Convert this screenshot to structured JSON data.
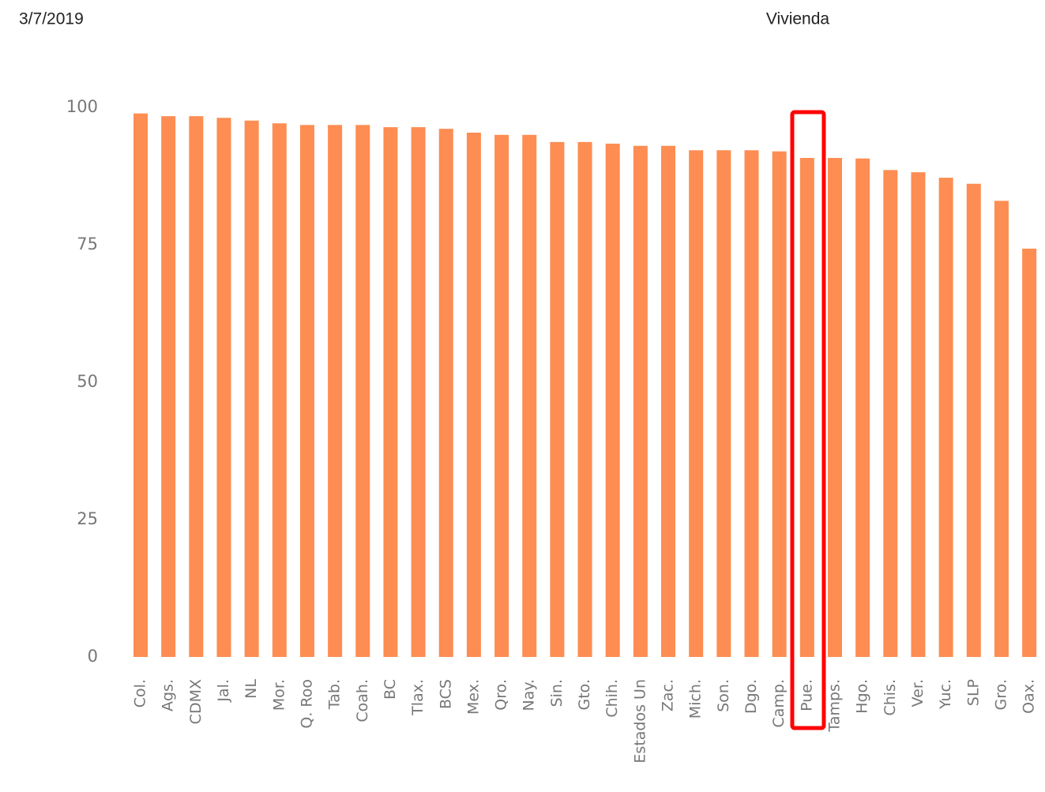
{
  "date": "3/7/2019",
  "chart_data": {
    "type": "bar",
    "title": "Vivienda",
    "categories": [
      "Col.",
      "Ags.",
      "CDMX",
      "Jal.",
      "NL",
      "Mor.",
      "Q. Roo",
      "Tab.",
      "Coah.",
      "BC",
      "Tlax.",
      "BCS",
      "Mex.",
      "Qro.",
      "Nay.",
      "Sin.",
      "Gto.",
      "Chih.",
      "Estados Un",
      "Zac.",
      "Mich.",
      "Son.",
      "Dgo.",
      "Camp.",
      "Pue.",
      "Tamps.",
      "Hgo.",
      "Chis.",
      "Ver.",
      "Yuc.",
      "SLP",
      "Gro.",
      "Oax."
    ],
    "values": [
      98.9,
      98.4,
      98.4,
      98.1,
      97.6,
      97.1,
      96.8,
      96.8,
      96.8,
      96.4,
      96.4,
      96.1,
      95.4,
      95.0,
      95.0,
      93.7,
      93.7,
      93.4,
      93.0,
      93.0,
      92.2,
      92.2,
      92.2,
      92.0,
      90.8,
      90.8,
      90.7,
      88.6,
      88.2,
      87.2,
      86.1,
      83.0,
      74.3
    ],
    "color": "#fd8d52",
    "ylim": [
      0,
      100
    ],
    "yticks": [
      0,
      25,
      50,
      75,
      100
    ],
    "grid": false
  }
}
